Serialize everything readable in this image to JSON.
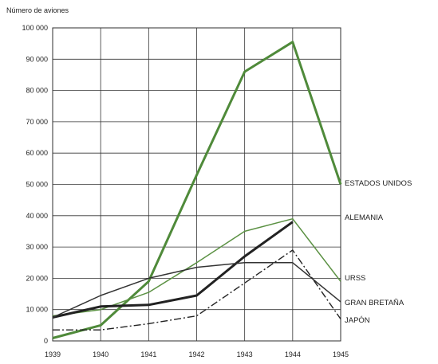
{
  "chart_data": {
    "type": "line",
    "title": "",
    "ylabel": "Número de aviones",
    "xlabel": "",
    "ylim": [
      0,
      100000
    ],
    "yticks": [
      0,
      10000,
      20000,
      30000,
      40000,
      50000,
      60000,
      70000,
      80000,
      90000,
      100000
    ],
    "ytick_labels": [
      "0",
      "10 000",
      "20 000",
      "30 000",
      "40 000",
      "50 000",
      "60 000",
      "70 000",
      "80 000",
      "90 000",
      "100 000"
    ],
    "x": [
      "1939",
      "1940",
      "1941",
      "1942",
      "1943",
      "1944",
      "1945"
    ],
    "grid": true,
    "legend": "labels at line ends on the right",
    "series": [
      {
        "name": "ESTADOS UNIDOS",
        "color": "#4f8a3a",
        "style": "thick-solid",
        "values": [
          900,
          5000,
          19000,
          53000,
          86000,
          95500,
          50000
        ]
      },
      {
        "name": "ALEMANIA",
        "color": "#5b9143",
        "style": "thin-solid",
        "values": [
          8000,
          10000,
          15500,
          25000,
          35000,
          39000,
          19000
        ]
      },
      {
        "name": "URSS",
        "color": "#222222",
        "style": "thick-solid",
        "values": [
          7500,
          11000,
          11500,
          14500,
          27000,
          38000,
          null
        ]
      },
      {
        "name": "GRAN BRETAÑA",
        "color": "#333333",
        "style": "thin-solid",
        "values": [
          7500,
          14500,
          20000,
          23500,
          25000,
          25000,
          12500
        ]
      },
      {
        "name": "JAPÓN",
        "color": "#222222",
        "style": "dash-dot",
        "values": [
          3500,
          3500,
          5500,
          8000,
          18500,
          29000,
          7000
        ]
      }
    ]
  }
}
